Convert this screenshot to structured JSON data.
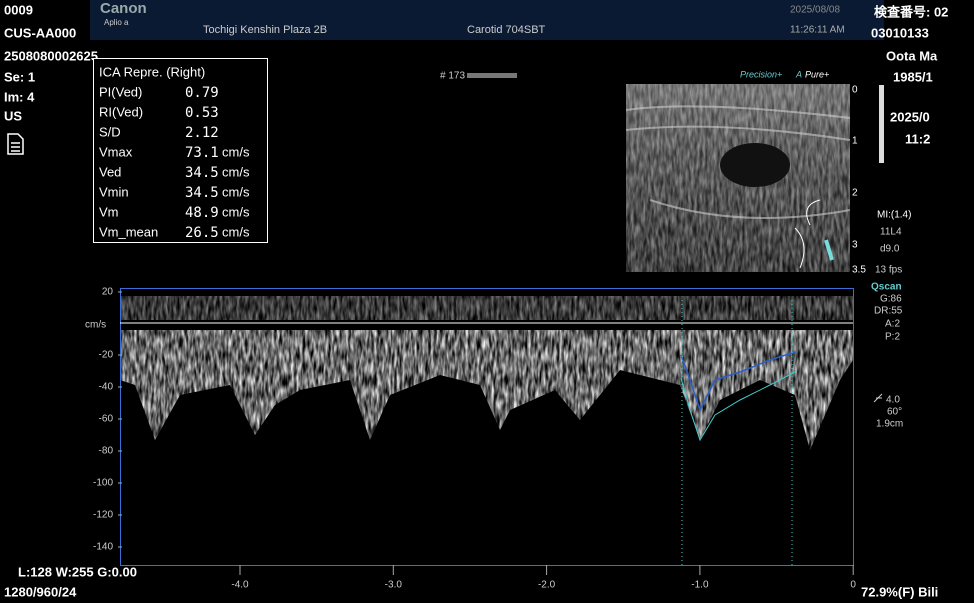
{
  "header": {
    "id": "0009",
    "patient_code": "CUS-AA000",
    "accession": "2508080002625",
    "series": "Se: 1",
    "image": "Im: 4",
    "modality": "US",
    "brand": "Canon",
    "model": "Aplio a",
    "facility": "Tochigi Kenshin Plaza 2B",
    "preset": "Carotid 704SBT",
    "date": "2025/08/08",
    "time": "11:26:11 AM",
    "exam_label": "検査番号: 02",
    "exam_number": "03010133"
  },
  "patient": {
    "name": "Oota Ma",
    "birth": "1985/1",
    "study_date": "2025/0",
    "study_time": "11:2"
  },
  "measurements": {
    "title": "ICA Repre. (Right)",
    "rows": [
      {
        "label": "PI(Ved)",
        "value": "0.79"
      },
      {
        "label": "RI(Ved)",
        "value": "0.53"
      },
      {
        "label": "S/D",
        "value": "2.12"
      },
      {
        "label": "Vmax",
        "value": "73.1",
        "unit": "cm/s"
      },
      {
        "label": "Ved",
        "value": "34.5",
        "unit": "cm/s"
      },
      {
        "label": "Vmin",
        "value": "34.5",
        "unit": "cm/s"
      },
      {
        "label": "Vm",
        "value": "48.9",
        "unit": "cm/s"
      },
      {
        "label": "Vm_mean",
        "value": "26.5",
        "unit": "cm/s"
      }
    ]
  },
  "frame": "# 173",
  "image_settings": {
    "precision": "Precision+",
    "a": "A",
    "pure": "Pure+",
    "depth_marks": [
      "0",
      "1",
      "2",
      "3",
      "3.5"
    ],
    "mi": "MI:(1.4)",
    "probe": "11L4",
    "depth": "d9.0",
    "fps": "13 fps",
    "qscan": "Qscan",
    "gain": "G:86",
    "dr": "DR:55",
    "a_val": "A:2",
    "p_val": "P:2",
    "angle_gate": "4.0",
    "angle": "60°",
    "gate": "1.9cm"
  },
  "spectrum": {
    "unit": "cm/s",
    "yticks": [
      "20",
      "-20",
      "-40",
      "-60",
      "-80",
      "-100",
      "-120",
      "-140"
    ],
    "xticks": [
      "-4.0",
      "-3.0",
      "-2.0",
      "-1.0",
      "0"
    ]
  },
  "footer": {
    "window": "L:128 W:255 G:0.00",
    "resolution": "1280/960/24",
    "status": "72.9%(F) Bili"
  }
}
